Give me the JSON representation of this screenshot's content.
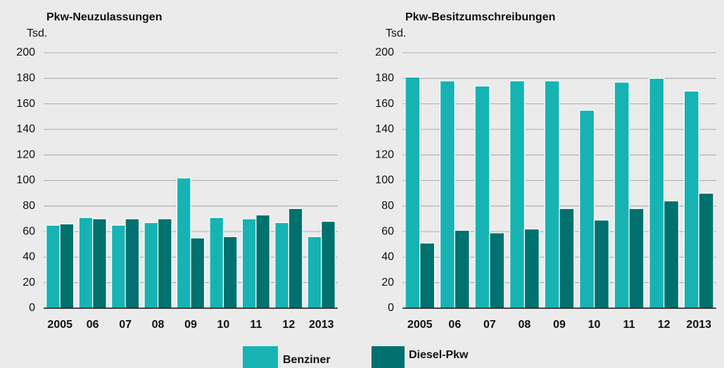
{
  "chart_data": [
    {
      "type": "bar",
      "title": "Pkw-Neuzulassungen",
      "y_label": "Tsd.",
      "categories": [
        "2005",
        "06",
        "07",
        "08",
        "09",
        "10",
        "11",
        "12",
        "2013"
      ],
      "series": [
        {
          "name": "Benziner",
          "color": "#17b3b3",
          "values": [
            65,
            71,
            65,
            67,
            102,
            71,
            70,
            67,
            56
          ]
        },
        {
          "name": "Diesel-Pkw",
          "color": "#00716e",
          "values": [
            66,
            70,
            70,
            70,
            55,
            56,
            73,
            78,
            68
          ]
        }
      ],
      "ylim": [
        0,
        200
      ],
      "yticks": [
        0,
        20,
        40,
        60,
        80,
        100,
        120,
        140,
        160,
        180,
        200
      ],
      "grid": true
    },
    {
      "type": "bar",
      "title": "Pkw-Besitzumschreibungen",
      "y_label": "Tsd.",
      "categories": [
        "2005",
        "06",
        "07",
        "08",
        "09",
        "10",
        "11",
        "12",
        "2013"
      ],
      "series": [
        {
          "name": "Benziner",
          "color": "#17b3b3",
          "values": [
            181,
            178,
            174,
            178,
            178,
            155,
            177,
            180,
            170
          ]
        },
        {
          "name": "Diesel-Pkw",
          "color": "#00716e",
          "values": [
            51,
            61,
            59,
            62,
            78,
            69,
            78,
            84,
            90
          ]
        }
      ],
      "ylim": [
        0,
        200
      ],
      "yticks": [
        0,
        20,
        40,
        60,
        80,
        100,
        120,
        140,
        160,
        180,
        200
      ],
      "grid": true
    }
  ]
}
